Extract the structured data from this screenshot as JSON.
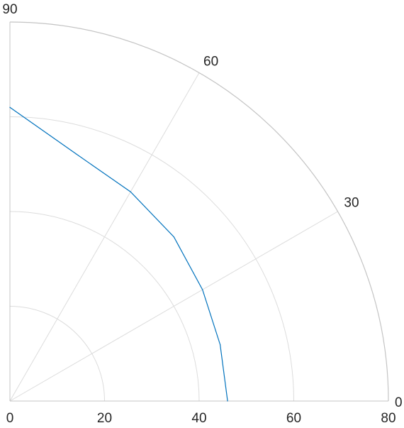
{
  "chart_data": {
    "type": "line",
    "subtype": "polar",
    "title": "",
    "theta_range_deg": [
      0,
      90
    ],
    "r_range": [
      0,
      80
    ],
    "theta_ticks": [
      "0",
      "30",
      "60",
      "90"
    ],
    "r_ticks": [
      "0",
      "20",
      "40",
      "60",
      "80"
    ],
    "grid": true,
    "series": [
      {
        "color": "#0072BD",
        "theta_deg": [
          0,
          15,
          30,
          45,
          60,
          75,
          90
        ],
        "r": [
          46,
          46,
          47,
          49,
          51,
          54,
          62
        ]
      }
    ]
  }
}
